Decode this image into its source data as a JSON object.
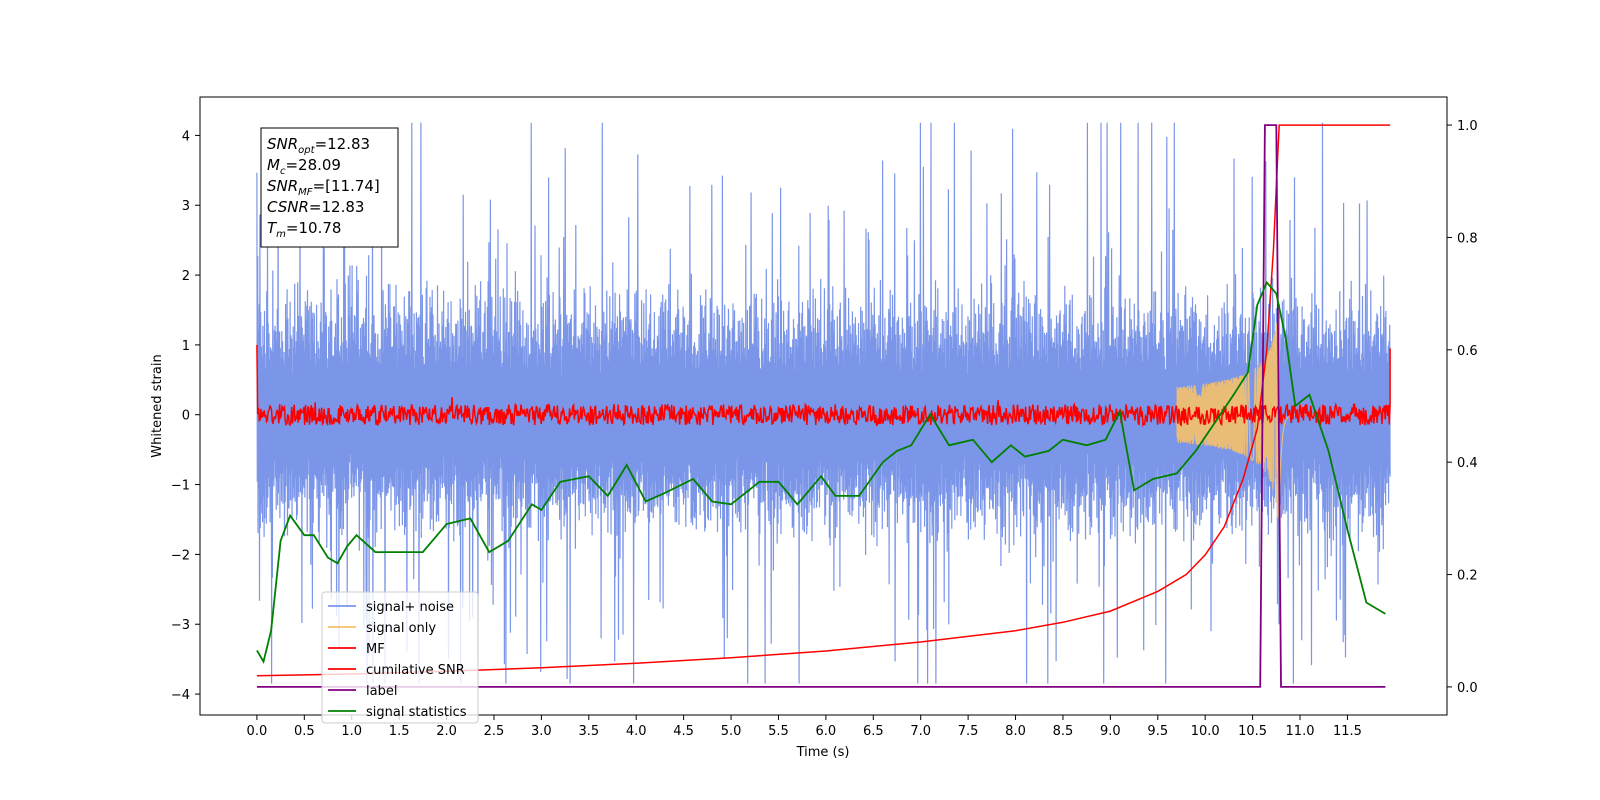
{
  "chart_data": {
    "type": "line",
    "xlabel": "Time (s)",
    "ylabel": "Whitened strain",
    "xlim": [
      -0.6,
      12.55
    ],
    "ylim_left": [
      -4.3,
      4.55
    ],
    "ylim_right": [
      -0.05,
      1.05
    ],
    "x_ticks": [
      0.0,
      0.5,
      1.0,
      1.5,
      2.0,
      2.5,
      3.0,
      3.5,
      4.0,
      4.5,
      5.0,
      5.5,
      6.0,
      6.5,
      7.0,
      7.5,
      8.0,
      8.5,
      9.0,
      9.5,
      10.0,
      10.5,
      11.0,
      11.5
    ],
    "x_tick_labels": [
      "0.0",
      "0.5",
      "1.0",
      "1.5",
      "2.0",
      "2.5",
      "3.0",
      "3.5",
      "4.0",
      "4.5",
      "5.0",
      "5.5",
      "6.0",
      "6.5",
      "7.0",
      "7.5",
      "8.0",
      "8.5",
      "9.0",
      "9.5",
      "10.0",
      "10.5",
      "11.0",
      "11.5"
    ],
    "y_left_ticks": [
      4,
      3,
      2,
      1,
      0,
      -1,
      -2,
      -3,
      -4
    ],
    "y_left_tick_labels": [
      "4",
      "3",
      "2",
      "1",
      "0",
      "−1",
      "−2",
      "−3",
      "−4"
    ],
    "y_right_ticks": [
      1.0,
      0.8,
      0.6,
      0.4,
      0.2,
      0.0
    ],
    "y_right_tick_labels": [
      "1.0",
      "0.8",
      "0.6",
      "0.4",
      "0.2",
      "0.0"
    ],
    "grid": false,
    "legend_position": "lower-left",
    "series": [
      {
        "name": "signal+ noise",
        "color": "#7b96e8",
        "axis": "left",
        "style": "dense noise, amplitude about ±2 with spikes to ±4"
      },
      {
        "name": "signal only",
        "color": "#f5c16c",
        "axis": "left",
        "style": "chirp growing from ~9.8 s to peak ~10.78 s"
      },
      {
        "name": "MF",
        "color": "#ff0000",
        "axis": "left",
        "style": "noisy around 0, amplitude ~0.15"
      },
      {
        "name": "cumilative SNR",
        "color": "#ff0000",
        "axis": "right",
        "x": [
          0.0,
          1.0,
          2.0,
          3.0,
          4.0,
          5.0,
          6.0,
          7.0,
          8.0,
          8.5,
          9.0,
          9.5,
          9.8,
          10.0,
          10.2,
          10.4,
          10.55,
          10.65,
          10.72,
          10.76,
          10.78,
          11.95
        ],
        "values": [
          0.02,
          0.023,
          0.028,
          0.034,
          0.042,
          0.052,
          0.064,
          0.08,
          0.1,
          0.115,
          0.135,
          0.17,
          0.2,
          0.235,
          0.285,
          0.37,
          0.46,
          0.6,
          0.78,
          0.93,
          1.0,
          1.0
        ]
      },
      {
        "name": "label",
        "color": "#800080",
        "axis": "right",
        "x": [
          0.0,
          10.58,
          10.63,
          10.75,
          10.8,
          11.9
        ],
        "values": [
          0.0,
          0.0,
          1.0,
          1.0,
          0.0,
          0.0
        ]
      },
      {
        "name": "signal statistics",
        "color": "#008000",
        "axis": "right",
        "x": [
          0.0,
          0.07,
          0.15,
          0.25,
          0.35,
          0.5,
          0.6,
          0.75,
          0.85,
          0.95,
          1.05,
          1.25,
          1.5,
          1.75,
          2.0,
          2.25,
          2.45,
          2.65,
          2.9,
          3.0,
          3.2,
          3.5,
          3.7,
          3.9,
          4.1,
          4.3,
          4.6,
          4.8,
          5.0,
          5.3,
          5.5,
          5.7,
          5.95,
          6.1,
          6.35,
          6.6,
          6.75,
          6.9,
          7.1,
          7.3,
          7.55,
          7.75,
          7.95,
          8.1,
          8.35,
          8.5,
          8.75,
          8.95,
          9.1,
          9.25,
          9.45,
          9.7,
          9.9,
          10.1,
          10.3,
          10.45,
          10.55,
          10.65,
          10.75,
          10.85,
          10.95,
          11.1,
          11.3,
          11.5,
          11.7,
          11.9
        ],
        "values": [
          0.065,
          0.045,
          0.1,
          0.26,
          0.305,
          0.27,
          0.27,
          0.23,
          0.22,
          0.25,
          0.27,
          0.24,
          0.24,
          0.24,
          0.29,
          0.3,
          0.24,
          0.26,
          0.325,
          0.315,
          0.365,
          0.375,
          0.34,
          0.395,
          0.33,
          0.345,
          0.37,
          0.33,
          0.325,
          0.365,
          0.365,
          0.325,
          0.375,
          0.34,
          0.34,
          0.4,
          0.42,
          0.43,
          0.485,
          0.43,
          0.44,
          0.4,
          0.43,
          0.41,
          0.42,
          0.44,
          0.43,
          0.44,
          0.49,
          0.35,
          0.37,
          0.38,
          0.42,
          0.47,
          0.52,
          0.56,
          0.68,
          0.72,
          0.7,
          0.62,
          0.5,
          0.52,
          0.42,
          0.28,
          0.15,
          0.13
        ]
      }
    ],
    "annotation": {
      "lines": [
        {
          "base": "SNR",
          "sub": "opt",
          "value": "=12.83"
        },
        {
          "base": "M",
          "sub": "c",
          "value": "=28.09"
        },
        {
          "base": "SNR",
          "sub": "MF",
          "value": "=[11.74]"
        },
        {
          "base": "CSNR",
          "sub": "",
          "value": "=12.83"
        },
        {
          "base": "T",
          "sub": "m",
          "value": "=10.78"
        }
      ]
    }
  }
}
